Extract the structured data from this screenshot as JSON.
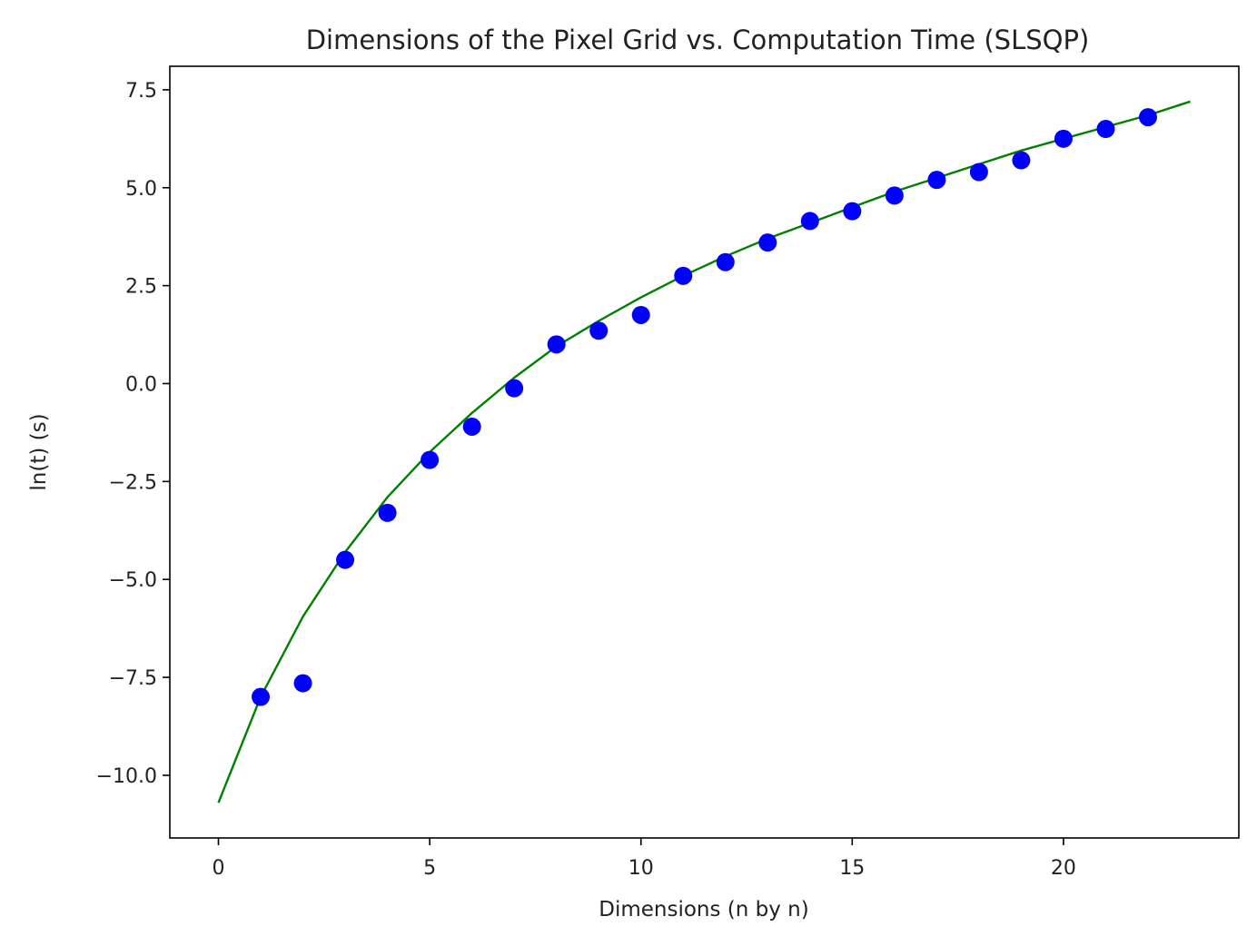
{
  "chart_data": {
    "type": "scatter",
    "title": "Dimensions of the Pixel Grid vs. Computation Time (SLSQP)",
    "xlabel": "Dimensions  (n by n)",
    "ylabel": "ln(t) (s)",
    "xlim": [
      -1.15,
      24.15
    ],
    "ylim": [
      -11.6,
      8.1
    ],
    "xticks": [
      0,
      5,
      10,
      15,
      20
    ],
    "xtick_labels": [
      "0",
      "5",
      "10",
      "15",
      "20"
    ],
    "yticks": [
      7.5,
      5.0,
      2.5,
      0.0,
      -2.5,
      -5.0,
      -7.5,
      -10.0
    ],
    "ytick_labels": [
      "7.5",
      "5.0",
      "2.5",
      "0.0",
      "−2.5",
      "−5.0",
      "−7.5",
      "−10.0"
    ],
    "grid": false,
    "legend": "none",
    "series": [
      {
        "kind": "scatter",
        "color": "#0000ff",
        "x": [
          1,
          2,
          3,
          4,
          5,
          6,
          7,
          8,
          9,
          10,
          11,
          12,
          13,
          14,
          15,
          16,
          17,
          18,
          19,
          20,
          21,
          22
        ],
        "y": [
          -8.0,
          -7.65,
          -4.5,
          -3.3,
          -1.95,
          -1.1,
          -0.12,
          1.0,
          1.35,
          1.75,
          2.75,
          3.1,
          3.6,
          4.15,
          4.4,
          4.8,
          5.2,
          5.4,
          5.7,
          6.25,
          6.5,
          6.8
        ]
      },
      {
        "kind": "line",
        "color": "#008000",
        "x": [
          0,
          1,
          2,
          3,
          4,
          5,
          6,
          7,
          8,
          9,
          10,
          11,
          12,
          13,
          14,
          15,
          16,
          17,
          18,
          19,
          20,
          21,
          22,
          23
        ],
        "y": [
          -10.7,
          -8.0,
          -5.95,
          -4.3,
          -2.9,
          -1.75,
          -0.75,
          0.15,
          0.95,
          1.6,
          2.2,
          2.75,
          3.25,
          3.7,
          4.1,
          4.5,
          4.9,
          5.25,
          5.6,
          5.95,
          6.25,
          6.55,
          6.85,
          7.2
        ]
      }
    ]
  }
}
